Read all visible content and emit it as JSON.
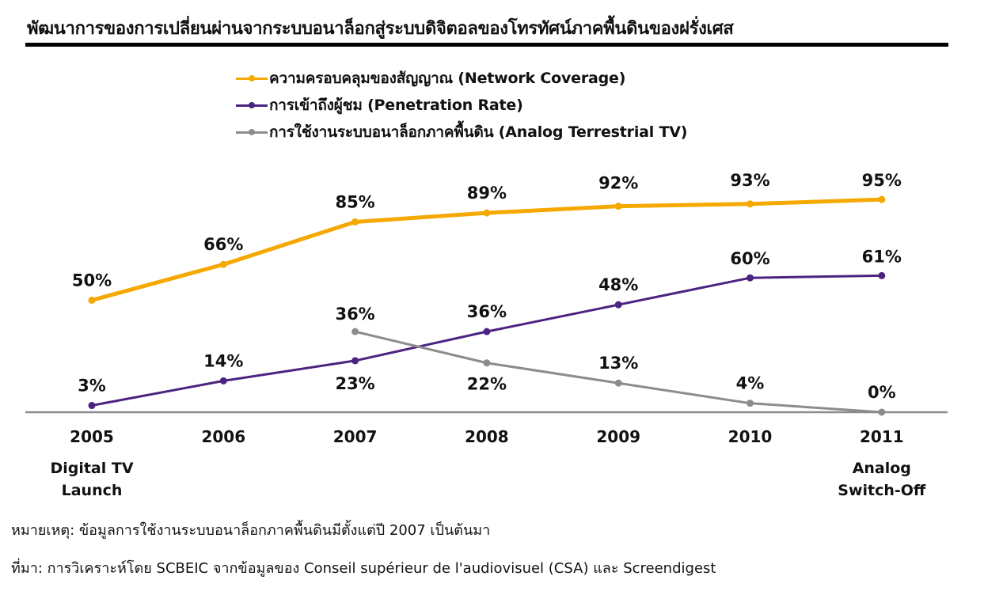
{
  "title": "พัฒนาการของการเปลี่ยนผ่านจากระบบอนาล็อกสู่ระบบดิจิตอลของโทรทัศน์ภาคพื้นดินของฝรั่งเศส",
  "colors": {
    "network": "#F5A800",
    "penetration": "#4B2380",
    "analog": "#8C8C8C",
    "baseline": "#8C8C8C",
    "text": "#111111"
  },
  "chart_data": {
    "type": "line",
    "title": "พัฒนาการของการเปลี่ยนผ่านจากระบบอนาล็อกสู่ระบบดิจิตอลของโทรทัศน์ภาคพื้นดินของฝรั่งเศส",
    "xlabel": "",
    "ylabel": "",
    "ylim": [
      0,
      100
    ],
    "grid": false,
    "legend_position": "top-center",
    "categories": [
      "2005",
      "2006",
      "2007",
      "2008",
      "2009",
      "2010",
      "2011"
    ],
    "category_sublabels": [
      [
        "Digital TV",
        "Launch"
      ],
      [],
      [],
      [],
      [],
      [],
      [
        "Analog",
        "Switch-Off"
      ]
    ],
    "series": [
      {
        "key": "network",
        "name": "ความครอบคลุมของสัญญาณ (Network Coverage)",
        "values": [
          50,
          66,
          85,
          89,
          92,
          93,
          95
        ],
        "labels": [
          "50%",
          "66%",
          "85%",
          "89%",
          "92%",
          "93%",
          "95%"
        ],
        "label_position": "above"
      },
      {
        "key": "penetration",
        "name": "การเข้าถึงผู้ชม (Penetration Rate)",
        "values": [
          3,
          14,
          23,
          36,
          48,
          60,
          61
        ],
        "labels": [
          "3%",
          "14%",
          "23%",
          "36%",
          "48%",
          "60%",
          "61%"
        ],
        "label_position": "above"
      },
      {
        "key": "analog",
        "name": "การใช้งานระบบอนาล็อกภาคพื้นดิน (Analog Terrestrial TV)",
        "values": [
          null,
          null,
          36,
          22,
          13,
          4,
          0
        ],
        "labels": [
          null,
          null,
          "36%",
          "22%",
          "13%",
          "4%",
          "0%"
        ],
        "label_position": "above"
      }
    ]
  },
  "notes": {
    "remark": "หมายเหตุ: ข้อมูลการใช้งานระบบอนาล็อกภาคพื้นดินมีตั้งแต่ปี 2007 เป็นต้นมา",
    "source": "ที่มา: การวิเคราะห์โดย SCBEIC จากข้อมูลของ Conseil supérieur de l'audiovisuel (CSA) และ Screendigest"
  }
}
